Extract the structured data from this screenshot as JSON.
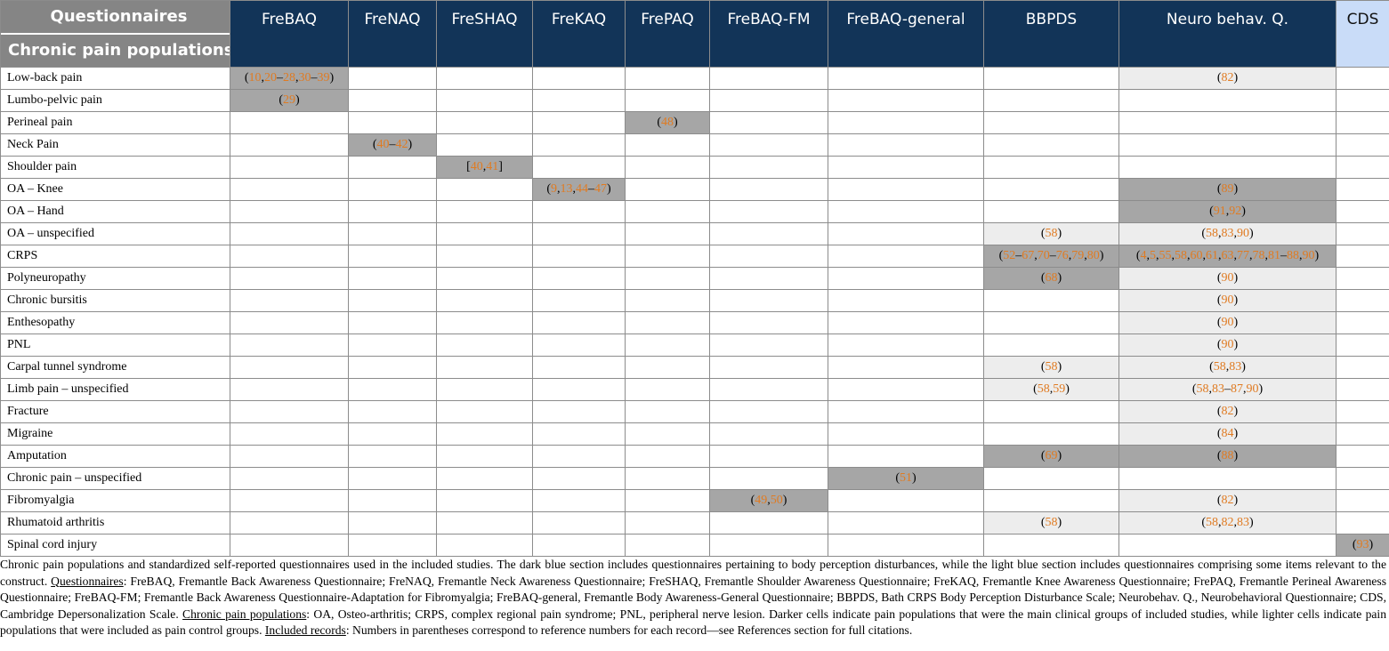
{
  "header": {
    "corner_top": "Questionnaires",
    "corner_bottom": "Chronic pain populations",
    "columns": [
      "FreBAQ",
      "FreNAQ",
      "FreSHAQ",
      "FreKAQ",
      "FrePAQ",
      "FreBAQ-FM",
      "FreBAQ-general",
      "BBPDS",
      "Neuro behav. Q.",
      "CDS"
    ]
  },
  "rows": [
    {
      "label": "Low-back pain",
      "cells": {
        "0": {
          "shade": "dark",
          "open": "(",
          "close": ")",
          "refs": [
            {
              "t": "10",
              "s": ","
            },
            {
              "t": "20",
              "s": "–"
            },
            {
              "t": "28",
              "s": ","
            },
            {
              "t": "30",
              "s": "–"
            },
            {
              "t": "39",
              "s": ""
            }
          ]
        },
        "8": {
          "shade": "light",
          "open": "(",
          "close": ")",
          "refs": [
            {
              "t": "82",
              "s": ""
            }
          ]
        }
      }
    },
    {
      "label": "Lumbo-pelvic pain",
      "cells": {
        "0": {
          "shade": "dark",
          "open": "(",
          "close": ")",
          "refs": [
            {
              "t": "29",
              "s": ""
            }
          ]
        }
      }
    },
    {
      "label": "Perineal pain",
      "cells": {
        "4": {
          "shade": "dark",
          "open": "(",
          "close": ")",
          "refs": [
            {
              "t": "48",
              "s": ""
            }
          ]
        }
      }
    },
    {
      "label": "Neck Pain",
      "cells": {
        "1": {
          "shade": "dark",
          "open": "(",
          "close": ")",
          "refs": [
            {
              "t": "40",
              "s": "–"
            },
            {
              "t": "42",
              "s": ""
            }
          ]
        }
      }
    },
    {
      "label": "Shoulder pain",
      "cells": {
        "2": {
          "shade": "dark",
          "open": "[",
          "close": "]",
          "refs": [
            {
              "t": "40",
              "s": ","
            },
            {
              "t": "41",
              "s": ""
            }
          ]
        }
      }
    },
    {
      "label": "OA – Knee",
      "cells": {
        "3": {
          "shade": "dark",
          "open": "(",
          "close": ")",
          "refs": [
            {
              "t": "9",
              "s": ","
            },
            {
              "t": "13",
              "s": ","
            },
            {
              "t": "44",
              "s": "–"
            },
            {
              "t": "47",
              "s": ""
            }
          ]
        },
        "8": {
          "shade": "dark",
          "open": "(",
          "close": ")",
          "refs": [
            {
              "t": "89",
              "s": ""
            }
          ]
        }
      }
    },
    {
      "label": "OA – Hand",
      "cells": {
        "8": {
          "shade": "dark",
          "open": "(",
          "close": ")",
          "refs": [
            {
              "t": "91",
              "s": ","
            },
            {
              "t": "92",
              "s": ""
            }
          ]
        }
      }
    },
    {
      "label": "OA – unspecified",
      "cells": {
        "7": {
          "shade": "light",
          "open": "(",
          "close": ")",
          "refs": [
            {
              "t": "58",
              "s": ""
            }
          ]
        },
        "8": {
          "shade": "light",
          "open": "(",
          "close": ")",
          "refs": [
            {
              "t": "58",
              "s": ","
            },
            {
              "t": "83",
              "s": ","
            },
            {
              "t": "90",
              "s": ""
            }
          ]
        }
      }
    },
    {
      "label": "CRPS",
      "cells": {
        "7": {
          "shade": "dark",
          "open": "(",
          "close": ")",
          "refs": [
            {
              "t": "52",
              "s": "–"
            },
            {
              "t": "67",
              "s": ","
            },
            {
              "t": "70",
              "s": "–"
            },
            {
              "t": "76",
              "s": ","
            },
            {
              "t": "79",
              "s": ","
            },
            {
              "t": "80",
              "s": ""
            }
          ]
        },
        "8": {
          "shade": "dark",
          "open": "(",
          "close": ")",
          "refs": [
            {
              "t": "4",
              "s": ","
            },
            {
              "t": "5",
              "s": ","
            },
            {
              "t": "55",
              "s": ","
            },
            {
              "t": "58",
              "s": ","
            },
            {
              "t": "60",
              "s": ","
            },
            {
              "t": "61",
              "s": ","
            },
            {
              "t": "63",
              "s": ","
            },
            {
              "t": "77",
              "s": ","
            },
            {
              "t": "78",
              "s": ","
            },
            {
              "t": "81",
              "s": "–"
            },
            {
              "t": "88",
              "s": ","
            },
            {
              "t": "90",
              "s": ""
            }
          ]
        }
      }
    },
    {
      "label": "Polyneuropathy",
      "cells": {
        "7": {
          "shade": "dark",
          "open": "(",
          "close": ")",
          "refs": [
            {
              "t": "68",
              "s": ""
            }
          ]
        },
        "8": {
          "shade": "light",
          "open": "(",
          "close": ")",
          "refs": [
            {
              "t": "90",
              "s": ""
            }
          ]
        }
      }
    },
    {
      "label": "Chronic bursitis",
      "cells": {
        "8": {
          "shade": "light",
          "open": "(",
          "close": ")",
          "refs": [
            {
              "t": "90",
              "s": ""
            }
          ]
        }
      }
    },
    {
      "label": "Enthesopathy",
      "cells": {
        "8": {
          "shade": "light",
          "open": "(",
          "close": ")",
          "refs": [
            {
              "t": "90",
              "s": ""
            }
          ]
        }
      }
    },
    {
      "label": "PNL",
      "cells": {
        "8": {
          "shade": "light",
          "open": "(",
          "close": ")",
          "refs": [
            {
              "t": "90",
              "s": ""
            }
          ]
        }
      }
    },
    {
      "label": "Carpal tunnel syndrome",
      "cells": {
        "7": {
          "shade": "light",
          "open": "(",
          "close": ")",
          "refs": [
            {
              "t": "58",
              "s": ""
            }
          ]
        },
        "8": {
          "shade": "light",
          "open": "(",
          "close": ")",
          "refs": [
            {
              "t": "58",
              "s": ","
            },
            {
              "t": "83",
              "s": ""
            }
          ]
        }
      }
    },
    {
      "label": "Limb pain – unspecified",
      "cells": {
        "7": {
          "shade": "light",
          "open": "(",
          "close": ")",
          "refs": [
            {
              "t": "58",
              "s": ","
            },
            {
              "t": "59",
              "s": ""
            }
          ]
        },
        "8": {
          "shade": "light",
          "open": "(",
          "close": ")",
          "refs": [
            {
              "t": "58",
              "s": ","
            },
            {
              "t": "83",
              "s": "–"
            },
            {
              "t": "87",
              "s": ","
            },
            {
              "t": "90",
              "s": ""
            }
          ]
        }
      }
    },
    {
      "label": "Fracture",
      "cells": {
        "8": {
          "shade": "light",
          "open": "(",
          "close": ")",
          "refs": [
            {
              "t": "82",
              "s": ""
            }
          ]
        }
      }
    },
    {
      "label": "Migraine",
      "cells": {
        "8": {
          "shade": "light",
          "open": "(",
          "close": ")",
          "refs": [
            {
              "t": "84",
              "s": ""
            }
          ]
        }
      }
    },
    {
      "label": "Amputation",
      "cells": {
        "7": {
          "shade": "dark",
          "open": "(",
          "close": ")",
          "refs": [
            {
              "t": "69",
              "s": ""
            }
          ]
        },
        "8": {
          "shade": "dark",
          "open": "(",
          "close": ")",
          "refs": [
            {
              "t": "88",
              "s": ""
            }
          ]
        }
      }
    },
    {
      "label": "Chronic pain – unspecified",
      "cells": {
        "6": {
          "shade": "dark",
          "open": "(",
          "close": ")",
          "refs": [
            {
              "t": "51",
              "s": ""
            }
          ]
        }
      }
    },
    {
      "label": "Fibromyalgia",
      "cells": {
        "5": {
          "shade": "dark",
          "open": "(",
          "close": ")",
          "refs": [
            {
              "t": "49",
              "s": ","
            },
            {
              "t": "50",
              "s": ""
            }
          ]
        },
        "8": {
          "shade": "light",
          "open": "(",
          "close": ")",
          "refs": [
            {
              "t": "82",
              "s": ""
            }
          ]
        }
      }
    },
    {
      "label": "Rhumatoid arthritis",
      "cells": {
        "7": {
          "shade": "light",
          "open": "(",
          "close": ")",
          "refs": [
            {
              "t": "58",
              "s": ""
            }
          ]
        },
        "8": {
          "shade": "light",
          "open": "(",
          "close": ")",
          "refs": [
            {
              "t": "58",
              "s": ","
            },
            {
              "t": "82",
              "s": ","
            },
            {
              "t": "83",
              "s": ""
            }
          ]
        }
      }
    },
    {
      "label": "Spinal cord injury",
      "cells": {
        "9": {
          "shade": "dark",
          "open": "(",
          "close": ")",
          "refs": [
            {
              "t": "93",
              "s": ""
            }
          ]
        }
      }
    }
  ],
  "caption": {
    "intro": "Chronic pain populations and standardized self-reported questionnaires used in the included studies. The dark blue section includes questionnaires pertaining to body perception disturbances, while the light blue section includes questionnaires comprising some items relevant to the construct. ",
    "q_title": "Questionnaires",
    "q_text": ": FreBAQ, Fremantle Back Awareness Questionnaire; FreNAQ, Fremantle Neck Awareness Questionnaire; FreSHAQ, Fremantle Shoulder Awareness Questionnaire; FreKAQ, Fremantle Knee Awareness Questionnaire; FrePAQ, Fremantle Perineal Awareness Questionnaire; FreBAQ-FM; Fremantle Back Awareness Questionnaire-Adaptation for Fibromyalgia; FreBAQ-general, Fremantle Body Awareness-General Questionnaire; BBPDS, Bath CRPS Body Perception Disturbance Scale; Neurobehav. Q., Neurobehavioral Questionnaire; CDS, Cambridge Depersonalization Scale. ",
    "p_title": "Chronic pain populations",
    "p_text": ": OA, Osteo-arthritis; CRPS, complex regional pain syndrome; PNL, peripheral nerve lesion. Darker cells indicate pain populations that were the main clinical groups of included studies, while lighter cells indicate pain populations that were included as pain control groups. ",
    "r_title": "Included records",
    "r_text": ": Numbers in parentheses correspond to reference numbers for each record—see References section for full citations."
  }
}
